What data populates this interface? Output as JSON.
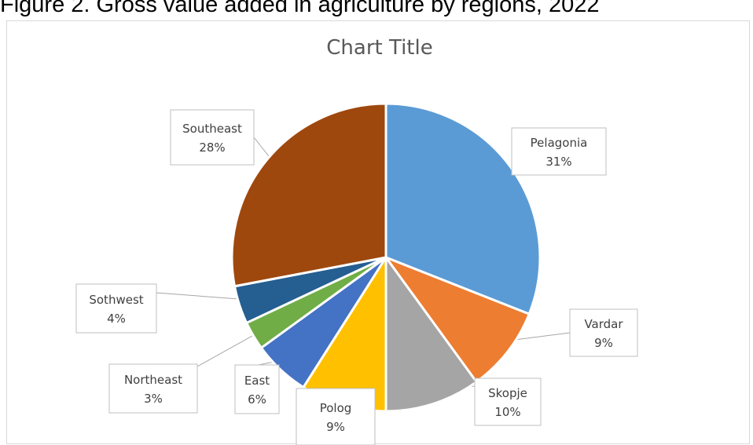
{
  "figure": {
    "caption": "Figure 2. Gross value added in agriculture by regions, 2022"
  },
  "chart_data": {
    "type": "pie",
    "title": "Chart Title",
    "legend": "none",
    "slices": [
      {
        "label": "Pelagonia",
        "value": 31,
        "value_label": "31%",
        "color": "#5B9BD5"
      },
      {
        "label": "Vardar",
        "value": 9,
        "value_label": "9%",
        "color": "#ED7D31"
      },
      {
        "label": "Skopje",
        "value": 10,
        "value_label": "10%",
        "color": "#A5A5A5"
      },
      {
        "label": "Polog",
        "value": 9,
        "value_label": "9%",
        "color": "#FFC000"
      },
      {
        "label": "East",
        "value": 6,
        "value_label": "6%",
        "color": "#4472C4"
      },
      {
        "label": "Northeast",
        "value": 3,
        "value_label": "3%",
        "color": "#70AD47"
      },
      {
        "label": "Sothwest",
        "value": 4,
        "value_label": "4%",
        "color": "#255E91"
      },
      {
        "label": "Southeast",
        "value": 28,
        "value_label": "28%",
        "color": "#9E480E"
      }
    ]
  }
}
